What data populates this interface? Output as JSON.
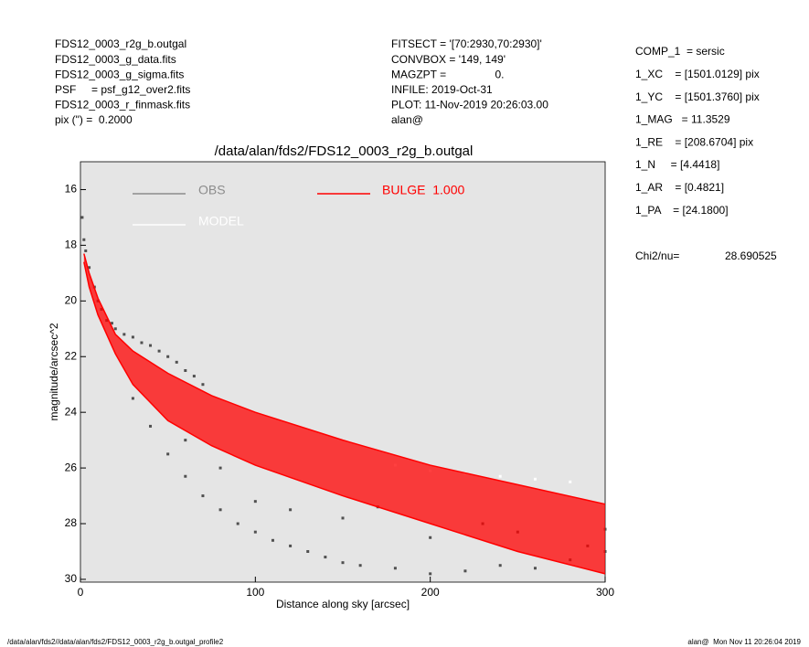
{
  "header": {
    "left": [
      "FDS12_0003_r2g_b.outgal",
      "FDS12_0003_g_data.fits",
      "FDS12_0003_g_sigma.fits",
      "PSF     = psf_g12_over2.fits",
      "FDS12_0003_r_finmask.fits",
      "pix (\") =  0.2000"
    ],
    "middle": [
      "FITSECT = '[70:2930,70:2930]'",
      "CONVBOX = '149, 149'",
      "MAGZPT =                0.",
      "INFILE: 2019-Oct-31",
      "PLOT: 11-Nov-2019 20:26:03.00",
      "alan@"
    ],
    "right": [
      "COMP_1  = sersic",
      "1_XC    = [1501.0129] pix",
      "1_YC    = [1501.3760] pix",
      "1_MAG   = 11.3529",
      "1_RE    = [208.6704] pix",
      "1_N     = [4.4418]",
      "1_AR    = [0.4821]",
      "1_PA    = [24.1800]"
    ],
    "chi2_label": "Chi2/nu=",
    "chi2_value": "28.690525"
  },
  "chart_data": {
    "type": "scatter",
    "title": "/data/alan/fds2/FDS12_0003_r2g_b.outgal",
    "x_label": "Distance along sky [arcsec]",
    "y_label": "magnitude/arcsec^2",
    "xlim": [
      0,
      300
    ],
    "xticks": [
      0,
      100,
      200,
      300
    ],
    "ylim": [
      15,
      30.1
    ],
    "y_reversed": true,
    "yticks": [
      16,
      18,
      20,
      22,
      24,
      26,
      28,
      30
    ],
    "background": "#e5e5e5",
    "series": [
      {
        "name": "OBS",
        "kind": "scatter",
        "color": "#505050",
        "legend_color": "#8c8c8c",
        "x": [
          1,
          2,
          3,
          5,
          8,
          10,
          12,
          15,
          18,
          20,
          25,
          30,
          35,
          40,
          45,
          50,
          55,
          60,
          65,
          70,
          30,
          40,
          50,
          60,
          70,
          80,
          90,
          100,
          110,
          120,
          130,
          140,
          150,
          160,
          180,
          200,
          220,
          240,
          260,
          280,
          300,
          100,
          150,
          200,
          250,
          300,
          60,
          80,
          120,
          170,
          230,
          290
        ],
        "values": [
          17,
          17.8,
          18.2,
          18.8,
          19.5,
          20,
          20.3,
          20.7,
          20.8,
          21,
          21.2,
          21.3,
          21.5,
          21.6,
          21.8,
          22,
          22.2,
          22.5,
          22.7,
          23,
          23.5,
          24.5,
          25.5,
          26.3,
          27,
          27.5,
          28,
          28.3,
          28.6,
          28.8,
          29,
          29.2,
          29.4,
          29.5,
          29.6,
          29.8,
          29.7,
          29.5,
          29.6,
          29.3,
          29,
          27.2,
          27.8,
          28.5,
          28.3,
          28.2,
          25,
          26,
          27.5,
          27.4,
          28,
          28.8
        ]
      },
      {
        "name": "MODEL",
        "kind": "scatter",
        "color": "#ffffff",
        "legend_color": "#ffffff",
        "x": [
          180,
          200,
          220,
          240,
          260,
          280
        ],
        "values": [
          25.9,
          26.1,
          26.2,
          26.3,
          26.4,
          26.5
        ]
      },
      {
        "name": "BULGE  1.000",
        "kind": "band",
        "color": "#ff0000",
        "legend_color": "#ff0000",
        "x": [
          2,
          5,
          10,
          20,
          30,
          50,
          75,
          100,
          150,
          200,
          250,
          300
        ],
        "values": [
          18.3,
          19,
          19.9,
          21.2,
          21.8,
          22.6,
          23.4,
          24,
          25,
          25.9,
          26.6,
          27.3
        ],
        "lower": [
          18.6,
          19.5,
          20.5,
          21.9,
          23,
          24.3,
          25.2,
          25.9,
          27,
          28,
          29,
          29.8
        ]
      }
    ]
  },
  "footer": {
    "left": "/data/alan/fds2//data/alan/fds2/FDS12_0003_r2g_b.outgal_profile2",
    "right": "alan@  Mon Nov 11 20:26:04 2019"
  }
}
